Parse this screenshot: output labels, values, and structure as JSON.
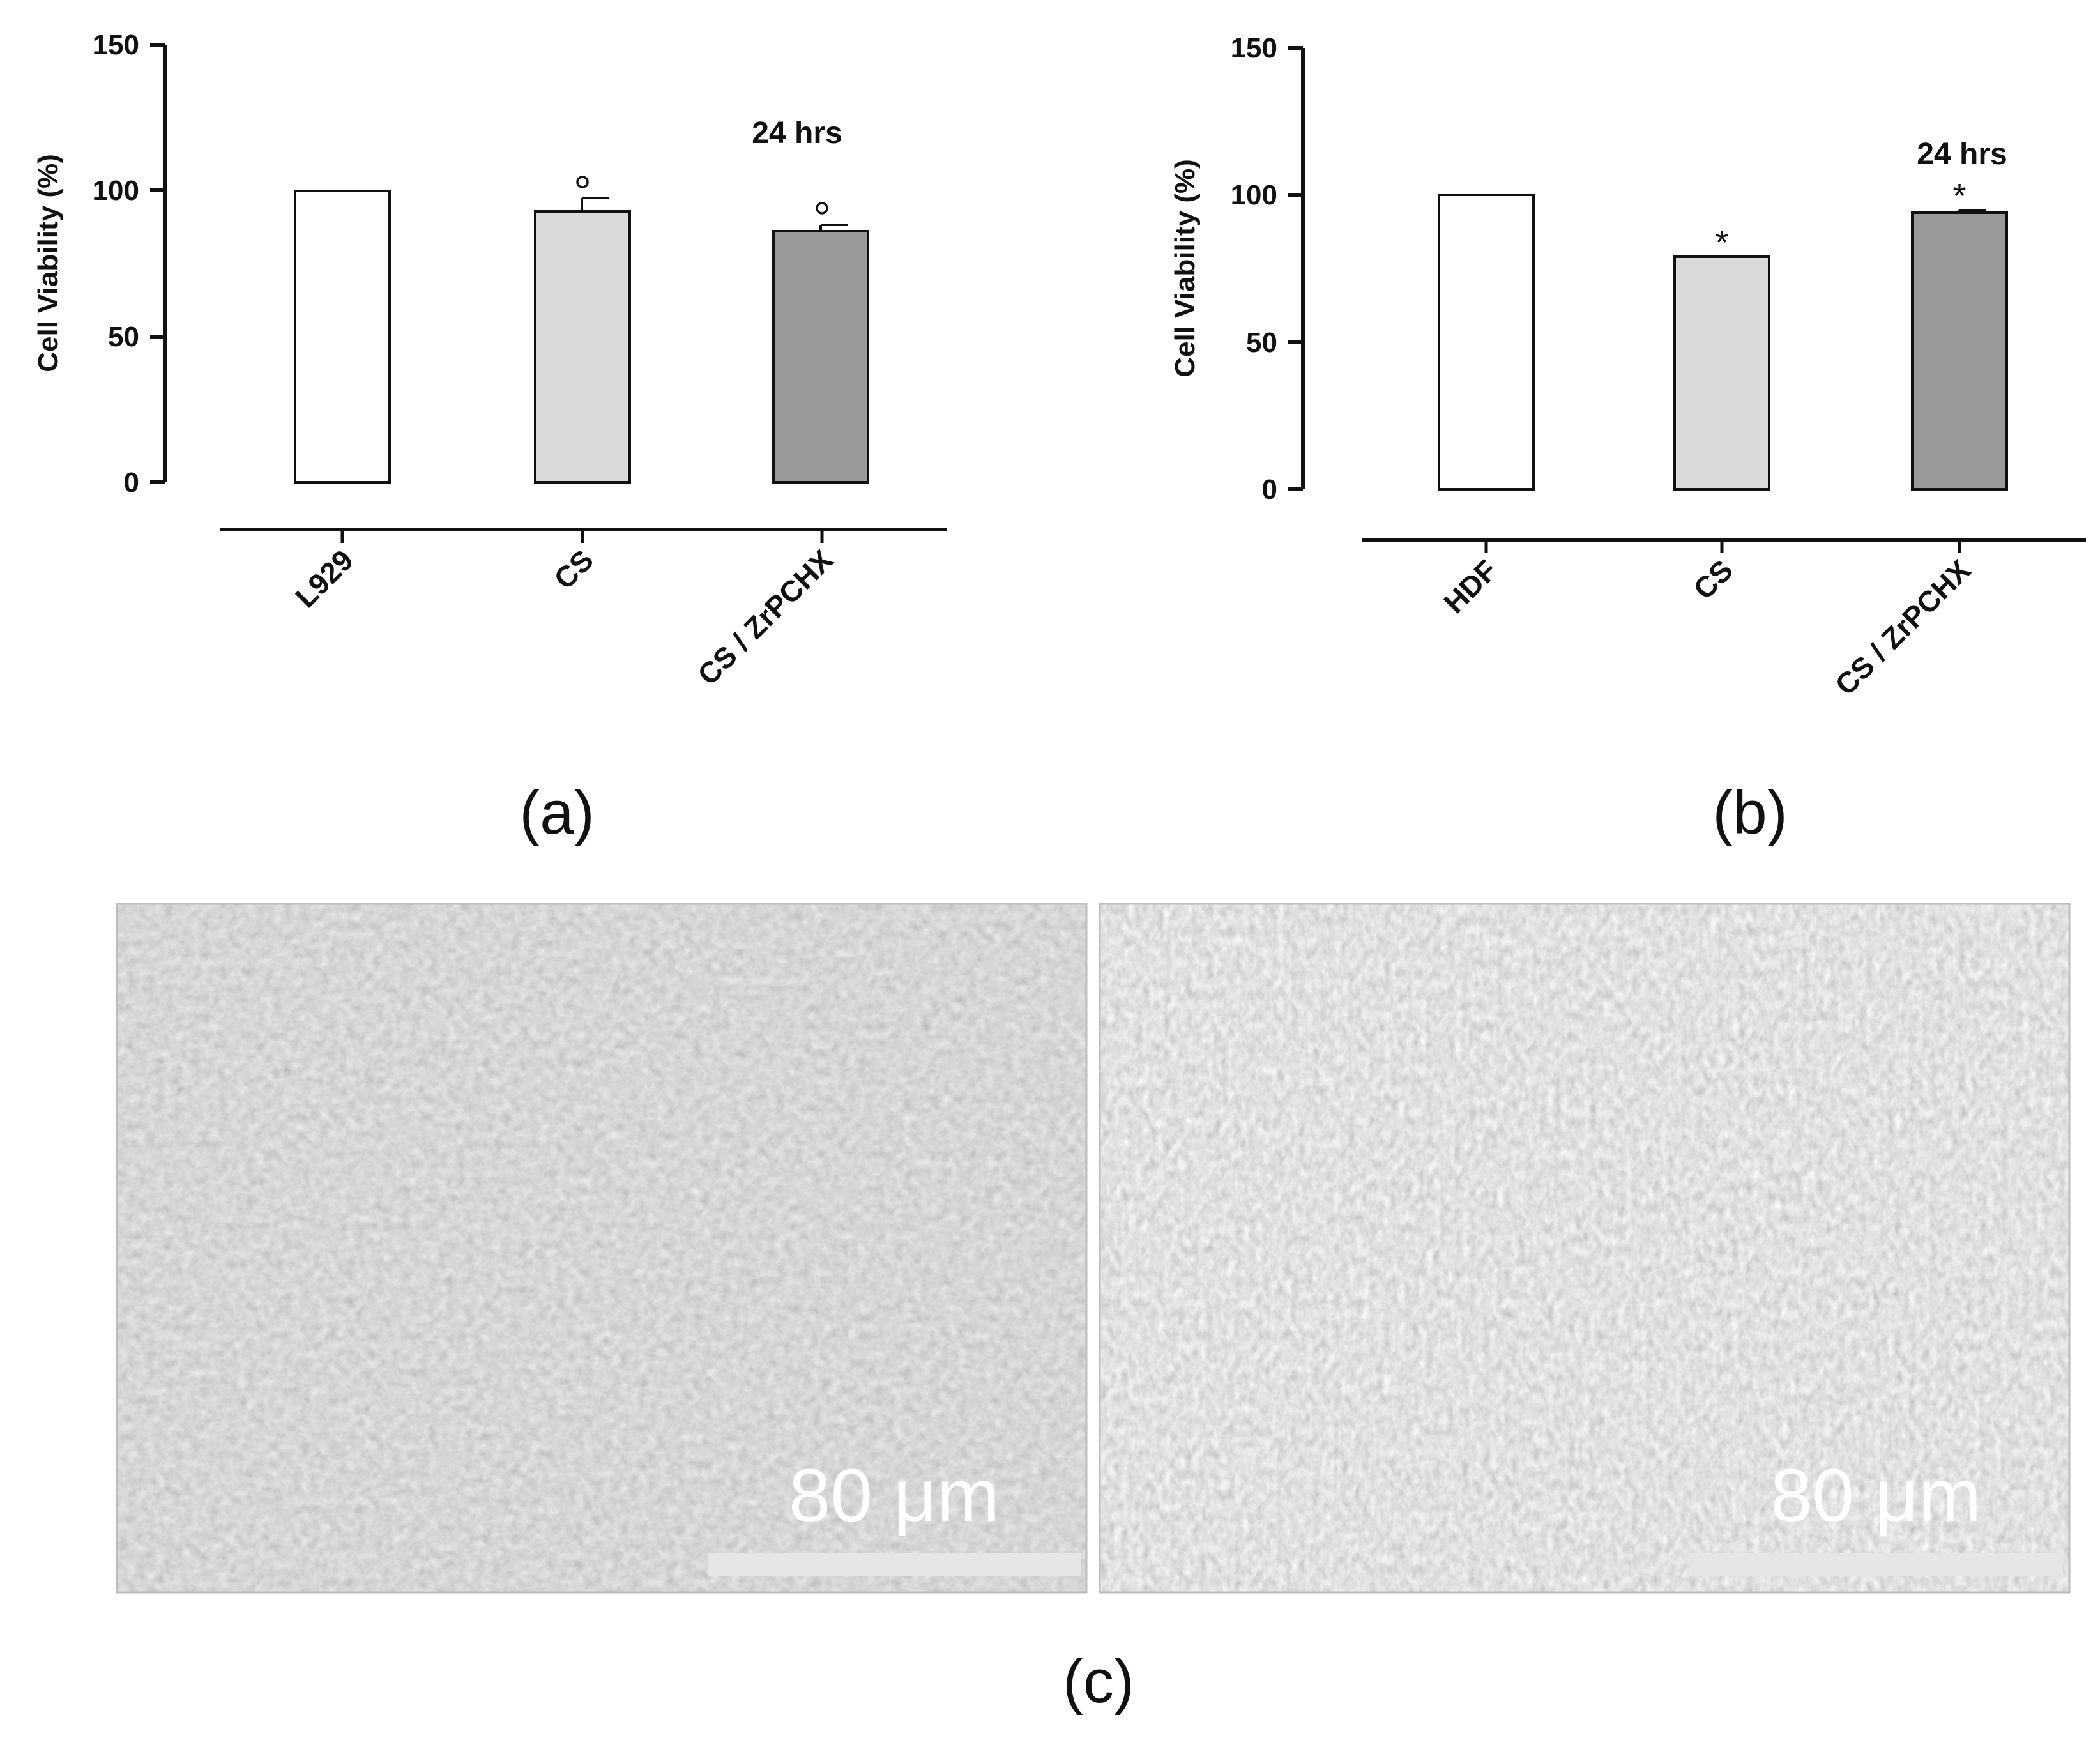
{
  "chart_data": [
    {
      "type": "bar",
      "panel_label": "(a)",
      "ylabel": "Cell Viability (%)",
      "ylim": [
        0,
        150
      ],
      "yticks": [
        "0",
        "50",
        "100",
        "150"
      ],
      "annotation": "24 hrs",
      "categories": [
        "L929",
        "CS",
        "CS / ZrPCHX"
      ],
      "values": [
        100,
        93,
        86
      ],
      "errors": [
        0,
        4.5,
        2
      ],
      "markers": [
        "",
        "°",
        "°"
      ],
      "colors": [
        "#ffffff",
        "#d9d9d9",
        "#9a9a9a"
      ]
    },
    {
      "type": "bar",
      "panel_label": "(b)",
      "ylabel": "Cell Viability (%)",
      "ylim": [
        0,
        150
      ],
      "yticks": [
        "0",
        "50",
        "100",
        "150"
      ],
      "annotation": "24 hrs",
      "categories": [
        "HDF",
        "CS",
        "CS / ZrPCHX"
      ],
      "values": [
        100,
        79,
        94
      ],
      "errors": [
        0,
        0,
        0.5
      ],
      "markers": [
        "",
        "*",
        "*"
      ],
      "colors": [
        "#ffffff",
        "#d9d9d9",
        "#9a9a9a"
      ]
    }
  ],
  "micrographs": {
    "panel_label": "(c)",
    "images": [
      {
        "scale_label": "80 μm"
      },
      {
        "scale_label": "80 μm"
      }
    ]
  }
}
